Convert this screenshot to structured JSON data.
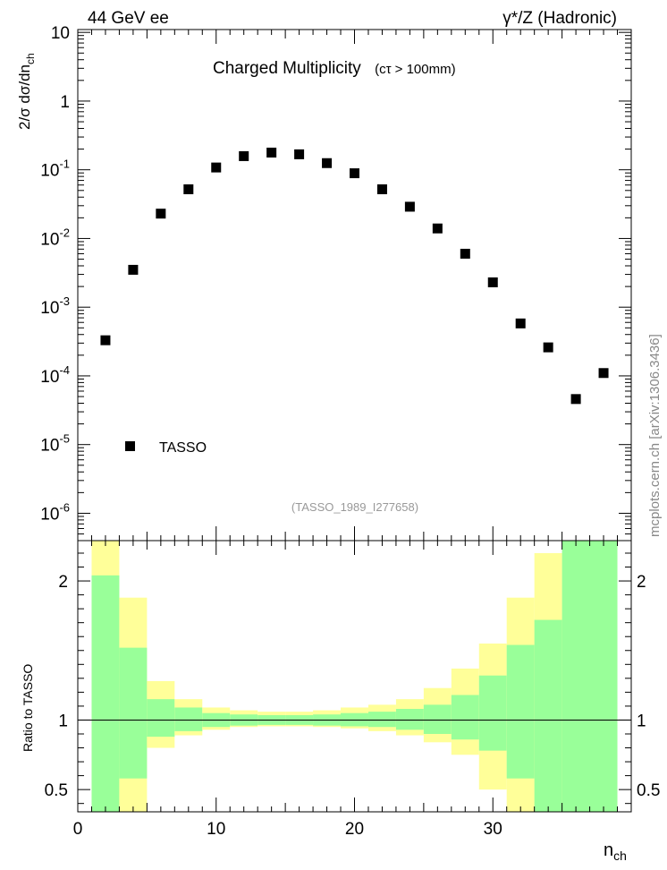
{
  "header": {
    "left": "44 GeV ee",
    "right": "γ*/Z (Hadronic)"
  },
  "side_label": "mcplots.cern.ch [arXiv:1306.3436]",
  "chart_data": [
    {
      "type": "scatter",
      "title": "Charged Multiplicity",
      "title_suffix": "(cτ > 100mm)",
      "analysis_tag": "(TASSO_1989_I277658)",
      "ylabel": "2/σ dσ/dn",
      "ylabel_sub": "ch",
      "yscale": "log",
      "xlim": [
        0,
        40
      ],
      "ylim": [
        4e-07,
        11
      ],
      "y_ticks": [
        {
          "base": "10",
          "exp": "-6",
          "value": 1e-06
        },
        {
          "base": "10",
          "exp": "-5",
          "value": 1e-05
        },
        {
          "base": "10",
          "exp": "-4",
          "value": 0.0001
        },
        {
          "base": "10",
          "exp": "-3",
          "value": 0.001
        },
        {
          "base": "10",
          "exp": "-2",
          "value": 0.01
        },
        {
          "base": "10",
          "exp": "-1",
          "value": 0.1
        },
        {
          "base": "1",
          "exp": "",
          "value": 1
        },
        {
          "base": "10",
          "exp": "",
          "value": 10
        }
      ],
      "legend_placement": "lower-left",
      "series": [
        {
          "name": "TASSO",
          "marker": "square",
          "color": "#000000",
          "x": [
            2,
            4,
            6,
            8,
            10,
            12,
            14,
            16,
            18,
            20,
            22,
            24,
            26,
            28,
            30,
            32,
            34,
            36,
            38
          ],
          "y": [
            0.00033,
            0.0035,
            0.023,
            0.052,
            0.108,
            0.158,
            0.178,
            0.168,
            0.125,
            0.089,
            0.052,
            0.029,
            0.014,
            0.006,
            0.0023,
            0.00058,
            0.00026,
            4.6e-05,
            0.00011
          ]
        }
      ]
    },
    {
      "type": "area",
      "ylabel": "Ratio to TASSO",
      "xlabel": "n",
      "xlabel_sub": "ch",
      "xlim": [
        0,
        40
      ],
      "ylim": [
        0.34,
        2.29
      ],
      "x_ticks": [
        0,
        10,
        20,
        30
      ],
      "y_ticks": [
        0.5,
        1,
        2
      ],
      "reference_line": 1,
      "bands": {
        "inner_color": "#99ff99",
        "outer_color": "#ffff99",
        "bins": [
          {
            "x0": 1,
            "x1": 3,
            "inner": [
              0.34,
              2.04
            ],
            "outer": [
              0.34,
              2.29
            ]
          },
          {
            "x0": 3,
            "x1": 5,
            "inner": [
              0.58,
              1.52
            ],
            "outer": [
              0.34,
              1.88
            ]
          },
          {
            "x0": 5,
            "x1": 7,
            "inner": [
              0.88,
              1.15
            ],
            "outer": [
              0.8,
              1.28
            ]
          },
          {
            "x0": 7,
            "x1": 9,
            "inner": [
              0.92,
              1.09
            ],
            "outer": [
              0.89,
              1.15
            ]
          },
          {
            "x0": 9,
            "x1": 11,
            "inner": [
              0.95,
              1.05
            ],
            "outer": [
              0.93,
              1.09
            ]
          },
          {
            "x0": 11,
            "x1": 13,
            "inner": [
              0.96,
              1.04
            ],
            "outer": [
              0.95,
              1.07
            ]
          },
          {
            "x0": 13,
            "x1": 15,
            "inner": [
              0.965,
              1.035
            ],
            "outer": [
              0.955,
              1.06
            ]
          },
          {
            "x0": 15,
            "x1": 17,
            "inner": [
              0.965,
              1.035
            ],
            "outer": [
              0.955,
              1.06
            ]
          },
          {
            "x0": 17,
            "x1": 19,
            "inner": [
              0.96,
              1.04
            ],
            "outer": [
              0.95,
              1.07
            ]
          },
          {
            "x0": 19,
            "x1": 21,
            "inner": [
              0.955,
              1.05
            ],
            "outer": [
              0.94,
              1.09
            ]
          },
          {
            "x0": 21,
            "x1": 23,
            "inner": [
              0.95,
              1.06
            ],
            "outer": [
              0.92,
              1.11
            ]
          },
          {
            "x0": 23,
            "x1": 25,
            "inner": [
              0.93,
              1.08
            ],
            "outer": [
              0.89,
              1.15
            ]
          },
          {
            "x0": 25,
            "x1": 27,
            "inner": [
              0.9,
              1.11
            ],
            "outer": [
              0.84,
              1.23
            ]
          },
          {
            "x0": 27,
            "x1": 29,
            "inner": [
              0.86,
              1.18
            ],
            "outer": [
              0.75,
              1.37
            ]
          },
          {
            "x0": 29,
            "x1": 31,
            "inner": [
              0.78,
              1.32
            ],
            "outer": [
              0.5,
              1.55
            ]
          },
          {
            "x0": 31,
            "x1": 33,
            "inner": [
              0.58,
              1.54
            ],
            "outer": [
              0.34,
              1.88
            ]
          },
          {
            "x0": 33,
            "x1": 35,
            "inner": [
              0.34,
              1.72
            ],
            "outer": [
              0.34,
              2.2
            ]
          },
          {
            "x0": 35,
            "x1": 39,
            "inner": [
              0.34,
              2.29
            ],
            "outer": [
              0.34,
              2.29
            ]
          }
        ]
      }
    }
  ]
}
